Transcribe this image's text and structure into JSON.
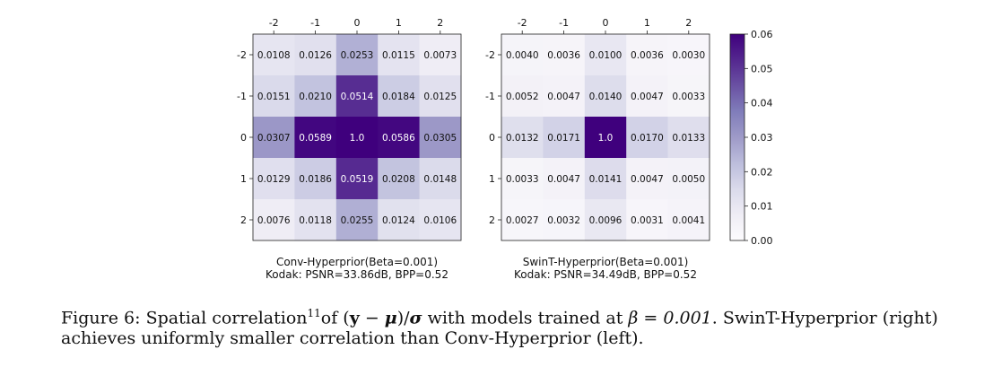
{
  "chart_data": [
    {
      "type": "heatmap",
      "title": "Conv-Hyperprior(Beta=0.001)",
      "subtitle": "Kodak: PSNR=33.86dB, BPP=0.52",
      "x_ticks": [
        "-2",
        "-1",
        "0",
        "1",
        "2"
      ],
      "y_ticks": [
        "-2",
        "-1",
        "0",
        "1",
        "2"
      ],
      "cells": [
        [
          "0.0108",
          "0.0126",
          "0.0253",
          "0.0115",
          "0.0073"
        ],
        [
          "0.0151",
          "0.0210",
          "0.0514",
          "0.0184",
          "0.0125"
        ],
        [
          "0.0307",
          "0.0589",
          "1.0",
          "0.0586",
          "0.0305"
        ],
        [
          "0.0129",
          "0.0186",
          "0.0519",
          "0.0208",
          "0.0148"
        ],
        [
          "0.0076",
          "0.0118",
          "0.0255",
          "0.0124",
          "0.0106"
        ]
      ]
    },
    {
      "type": "heatmap",
      "title": "SwinT-Hyperprior(Beta=0.001)",
      "subtitle": "Kodak: PSNR=34.49dB, BPP=0.52",
      "x_ticks": [
        "-2",
        "-1",
        "0",
        "1",
        "2"
      ],
      "y_ticks": [
        "-2",
        "-1",
        "0",
        "1",
        "2"
      ],
      "cells": [
        [
          "0.0040",
          "0.0036",
          "0.0100",
          "0.0036",
          "0.0030"
        ],
        [
          "0.0052",
          "0.0047",
          "0.0140",
          "0.0047",
          "0.0033"
        ],
        [
          "0.0132",
          "0.0171",
          "1.0",
          "0.0170",
          "0.0133"
        ],
        [
          "0.0033",
          "0.0047",
          "0.0141",
          "0.0047",
          "0.0050"
        ],
        [
          "0.0027",
          "0.0032",
          "0.0096",
          "0.0031",
          "0.0041"
        ]
      ]
    }
  ],
  "colorbar": {
    "min": 0.0,
    "max": 0.06,
    "ticks": [
      "0.00",
      "0.01",
      "0.02",
      "0.03",
      "0.04",
      "0.05",
      "0.06"
    ],
    "colormap": "Purples",
    "colors": [
      "#fcfbfd",
      "#efedf5",
      "#dadaeb",
      "#bcbddc",
      "#9e9ac8",
      "#807dba",
      "#6a51a3",
      "#54278f",
      "#3f007d"
    ]
  },
  "caption": {
    "label": "Figure 6:",
    "text_1": "Spatial correlation",
    "footnote": "11",
    "text_2": "of (",
    "expr_y": "y",
    "minus": " − ",
    "expr_mu": "μ",
    "expr_slash": ")/",
    "expr_sigma": "σ",
    "text_3": " with models trained at ",
    "beta_expr": "β = 0.001",
    "text_4": ".  SwinT-Hyperprior (right) achieves uniformly smaller correlation than Conv-Hyperprior (left)."
  }
}
